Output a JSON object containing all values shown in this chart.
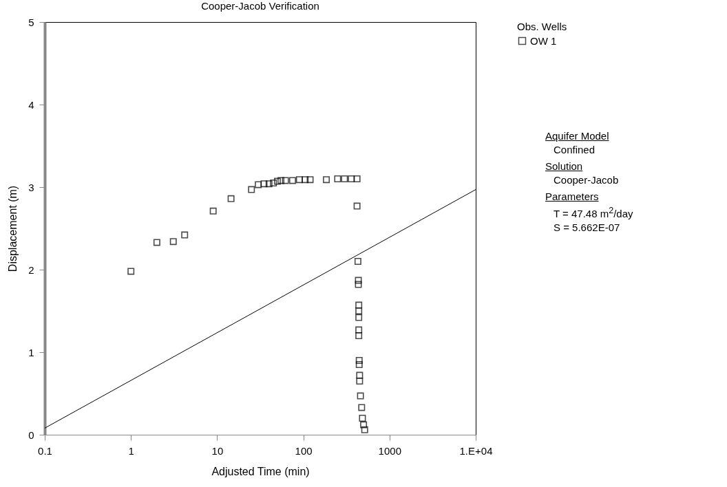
{
  "chart_data": {
    "type": "scatter",
    "title": "Cooper-Jacob Verification",
    "xlabel": "Adjusted Time (min)",
    "ylabel": "Displacement (m)",
    "legend_title": "Obs. Wells",
    "log": "x",
    "xlim": [
      0.1,
      10000
    ],
    "xticks": [
      {
        "value": 0.1,
        "label": "0.1"
      },
      1,
      10,
      100,
      1000,
      {
        "value": 10000,
        "label": "1.E+04"
      }
    ],
    "ylim": [
      0,
      5
    ],
    "yticks": [
      0,
      1,
      2,
      3,
      4,
      5
    ],
    "grid": false,
    "legend": "right",
    "series": [
      {
        "name": "OW 1",
        "marker": "square",
        "color": "#000000",
        "x": [
          1,
          2,
          3.1,
          4.2,
          9,
          14.5,
          25,
          30,
          35,
          40,
          45,
          50,
          55,
          62,
          75,
          90,
          105,
          120,
          185,
          250,
          300,
          360,
          420,
          420,
          430,
          435,
          435,
          440,
          440,
          440,
          440,
          440,
          445,
          445,
          450,
          450,
          460,
          475,
          485,
          500,
          515
        ],
        "values": [
          1.98,
          2.33,
          2.34,
          2.42,
          2.71,
          2.86,
          2.97,
          3.03,
          3.04,
          3.04,
          3.05,
          3.07,
          3.08,
          3.08,
          3.08,
          3.09,
          3.09,
          3.09,
          3.09,
          3.1,
          3.1,
          3.1,
          3.1,
          2.77,
          2.1,
          1.87,
          1.82,
          1.57,
          1.5,
          1.42,
          1.27,
          1.2,
          0.9,
          0.85,
          0.72,
          0.65,
          0.47,
          0.33,
          0.2,
          0.12,
          0.06
        ]
      },
      {
        "type": "line",
        "color": "#000000",
        "line_style": "solid",
        "x": [
          0.1,
          10000
        ],
        "values": [
          0.08,
          2.97
        ]
      }
    ],
    "annotations": [
      "Aquifer Model",
      "Confined",
      "Solution",
      "Cooper-Jacob",
      "Parameters",
      "T = 47.48 m$^{2}$/day",
      "S = 5.662E-07"
    ]
  }
}
